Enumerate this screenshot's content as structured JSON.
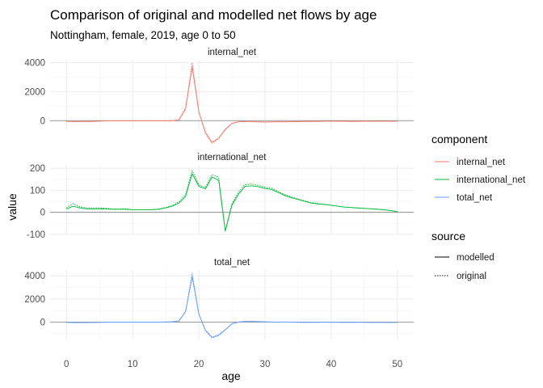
{
  "chart_data": {
    "type": "line",
    "title": "Comparison of original and modelled net flows by age",
    "subtitle": "Nottingham, female, 2019, age 0 to 50",
    "xlabel": "age",
    "ylabel": "value",
    "xlim": [
      0,
      50
    ],
    "x_ticks": [
      0,
      10,
      20,
      30,
      40,
      50
    ],
    "grid": true,
    "legend_position": "right",
    "legend": {
      "component_title": "component",
      "source_title": "source",
      "component_entries": [
        {
          "name": "internal_net",
          "color": "#F8766D"
        },
        {
          "name": "international_net",
          "color": "#00BA38"
        },
        {
          "name": "total_net",
          "color": "#619CFF"
        }
      ],
      "source_entries": [
        {
          "name": "modelled",
          "linetype": "solid"
        },
        {
          "name": "original",
          "linetype": "dotted"
        }
      ]
    },
    "x": [
      0,
      1,
      2,
      3,
      4,
      5,
      6,
      7,
      8,
      9,
      10,
      11,
      12,
      13,
      14,
      15,
      16,
      17,
      18,
      19,
      20,
      21,
      22,
      23,
      24,
      25,
      26,
      27,
      28,
      29,
      30,
      31,
      32,
      33,
      34,
      35,
      36,
      37,
      38,
      39,
      40,
      41,
      42,
      43,
      44,
      45,
      46,
      47,
      48,
      49,
      50
    ],
    "panels": [
      {
        "name": "internal_net",
        "color": "#F8766D",
        "ylim": [
          -600,
          4200
        ],
        "y_ticks": [
          0,
          2000,
          4000
        ],
        "series": [
          {
            "name": "modelled",
            "values": [
              -50,
              -60,
              -60,
              -50,
              -50,
              -30,
              -20,
              -10,
              -10,
              -10,
              -10,
              -10,
              -10,
              -10,
              -10,
              -10,
              0,
              50,
              800,
              3700,
              600,
              -800,
              -1500,
              -1200,
              -600,
              -200,
              -80,
              -60,
              -60,
              -80,
              -90,
              -90,
              -80,
              -80,
              -70,
              -70,
              -60,
              -50,
              -50,
              -40,
              -40,
              -40,
              -40,
              -50,
              -50,
              -40,
              -40,
              -40,
              -40,
              -40,
              -40
            ]
          },
          {
            "name": "original",
            "values": [
              -40,
              -70,
              -60,
              -60,
              -50,
              -30,
              -20,
              -10,
              -10,
              -10,
              -10,
              -10,
              -10,
              -10,
              -10,
              -10,
              0,
              60,
              900,
              4000,
              650,
              -900,
              -1550,
              -1250,
              -650,
              -180,
              -60,
              -50,
              -70,
              -100,
              -110,
              -80,
              -60,
              -90,
              -70,
              -60,
              -50,
              -40,
              -60,
              -20,
              -40,
              -30,
              -50,
              -60,
              -40,
              -30,
              -50,
              -40,
              -30,
              -50,
              -40
            ]
          }
        ]
      },
      {
        "name": "international_net",
        "color": "#00BA38",
        "ylim": [
          -100,
          215
        ],
        "y_ticks": [
          -100,
          0,
          100,
          200
        ],
        "series": [
          {
            "name": "modelled",
            "values": [
              15,
              28,
              20,
              16,
              15,
              16,
              15,
              14,
              14,
              14,
              12,
              12,
              12,
              12,
              14,
              20,
              28,
              42,
              72,
              175,
              118,
              106,
              160,
              146,
              -85,
              32,
              82,
              118,
              120,
              116,
              108,
              104,
              90,
              76,
              66,
              58,
              50,
              42,
              38,
              36,
              32,
              28,
              24,
              22,
              20,
              18,
              16,
              14,
              12,
              8,
              3
            ]
          },
          {
            "name": "original",
            "values": [
              20,
              40,
              25,
              20,
              20,
              20,
              18,
              15,
              15,
              16,
              12,
              12,
              12,
              12,
              15,
              22,
              30,
              48,
              80,
              190,
              125,
              112,
              172,
              158,
              -82,
              38,
              92,
              126,
              128,
              122,
              114,
              110,
              94,
              80,
              70,
              60,
              52,
              44,
              40,
              36,
              32,
              28,
              24,
              22,
              20,
              18,
              16,
              14,
              12,
              8,
              3
            ]
          }
        ]
      },
      {
        "name": "total_net",
        "color": "#619CFF",
        "ylim": [
          -1500,
          4500
        ],
        "y_ticks": [
          0,
          2000,
          4000
        ],
        "series": [
          {
            "name": "modelled",
            "values": [
              -30,
              -40,
              -50,
              -40,
              -40,
              -20,
              -10,
              0,
              0,
              0,
              0,
              0,
              0,
              0,
              0,
              10,
              30,
              100,
              900,
              3900,
              700,
              -700,
              -1300,
              -1100,
              -650,
              -150,
              0,
              50,
              60,
              40,
              20,
              10,
              0,
              0,
              0,
              -10,
              -20,
              -20,
              -10,
              -10,
              -10,
              -10,
              -20,
              -20,
              -20,
              -20,
              -30,
              -30,
              -30,
              -30,
              -30
            ]
          },
          {
            "name": "original",
            "values": [
              -20,
              -50,
              -40,
              -50,
              -30,
              -20,
              -10,
              0,
              0,
              0,
              0,
              0,
              0,
              0,
              0,
              10,
              30,
              110,
              950,
              4200,
              750,
              -780,
              -1380,
              -1160,
              -700,
              -130,
              20,
              70,
              90,
              60,
              30,
              0,
              -20,
              10,
              0,
              -20,
              -30,
              -10,
              -30,
              0,
              -10,
              -20,
              -30,
              -30,
              -10,
              -20,
              -40,
              -30,
              -20,
              -40,
              -30
            ]
          }
        ]
      }
    ]
  }
}
